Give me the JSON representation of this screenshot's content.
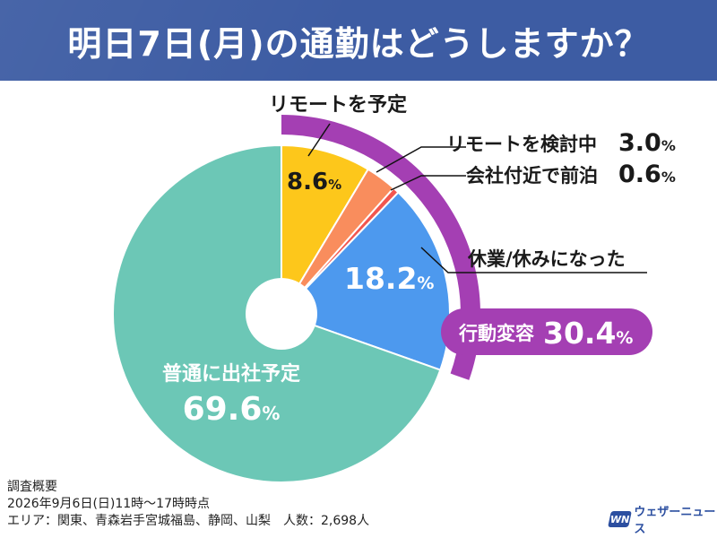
{
  "title": "明日7日(月)の通勤はどうしますか？",
  "chart_data": {
    "type": "pie",
    "slices": [
      {
        "label": "リモートを予定",
        "value": 8.6,
        "value_text": "8.6",
        "color": "#fdc71b"
      },
      {
        "label": "リモートを検討中",
        "value": 3.0,
        "value_text": "3.0",
        "color": "#f98d5d"
      },
      {
        "label": "会社付近で前泊",
        "value": 0.6,
        "value_text": "0.6",
        "color": "#f2564f"
      },
      {
        "label": "休業/休みになった",
        "value": 18.2,
        "value_text": "18.2",
        "color": "#4d99ee"
      },
      {
        "label": "普通に出社予定",
        "value": 69.6,
        "value_text": "69.6",
        "color": "#6cc7b6"
      }
    ],
    "group": {
      "label": "行動変容",
      "value": 30.4,
      "value_text": "30.4",
      "color": "#a43fb3"
    },
    "unit": "%"
  },
  "survey": {
    "heading": "調査概要",
    "date": "2026年9月6日(日)11時～17時時点",
    "area": "エリア：関東、青森岩手宮城福島、静岡、山梨　人数：2,698人"
  },
  "logo": {
    "mark": "WN",
    "text": "ウェザーニュース",
    "color": "#2c4fa0"
  }
}
